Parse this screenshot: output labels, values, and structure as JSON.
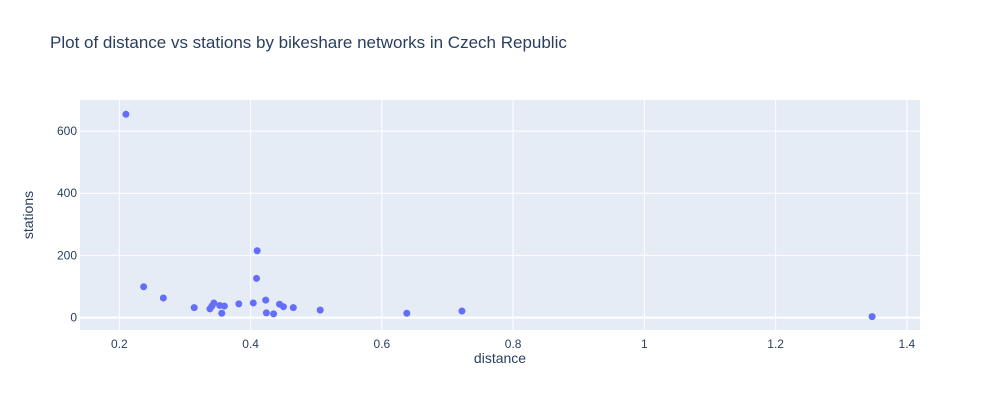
{
  "chart_data": {
    "type": "scatter",
    "title": "Plot of distance vs stations by bikeshare networks in Czech Republic",
    "xlabel": "distance",
    "ylabel": "stations",
    "xlim": [
      0.14,
      1.42
    ],
    "ylim": [
      -40,
      700
    ],
    "x_ticks": [
      0.2,
      0.4,
      0.6,
      0.8,
      1,
      1.2,
      1.4
    ],
    "x_tick_labels": [
      "0.2",
      "0.4",
      "0.6",
      "0.8",
      "1",
      "1.2",
      "1.4"
    ],
    "y_ticks": [
      0,
      200,
      400,
      600
    ],
    "y_tick_labels": [
      "0",
      "200",
      "400",
      "600"
    ],
    "grid": true,
    "colors": {
      "background": "#e5ecf6",
      "grid": "#ffffff",
      "marker": "#636efa",
      "text": "#2a3f5f"
    },
    "series": [
      {
        "points": [
          {
            "x": 0.21,
            "y": 654
          },
          {
            "x": 0.237,
            "y": 99
          },
          {
            "x": 0.267,
            "y": 63
          },
          {
            "x": 0.314,
            "y": 32
          },
          {
            "x": 0.338,
            "y": 28
          },
          {
            "x": 0.341,
            "y": 37
          },
          {
            "x": 0.344,
            "y": 47
          },
          {
            "x": 0.353,
            "y": 39
          },
          {
            "x": 0.356,
            "y": 14
          },
          {
            "x": 0.36,
            "y": 37
          },
          {
            "x": 0.382,
            "y": 44
          },
          {
            "x": 0.404,
            "y": 47
          },
          {
            "x": 0.409,
            "y": 126
          },
          {
            "x": 0.41,
            "y": 215
          },
          {
            "x": 0.423,
            "y": 56
          },
          {
            "x": 0.424,
            "y": 15
          },
          {
            "x": 0.435,
            "y": 12
          },
          {
            "x": 0.444,
            "y": 43
          },
          {
            "x": 0.45,
            "y": 35
          },
          {
            "x": 0.465,
            "y": 32
          },
          {
            "x": 0.506,
            "y": 24
          },
          {
            "x": 0.638,
            "y": 14
          },
          {
            "x": 0.722,
            "y": 21
          },
          {
            "x": 1.347,
            "y": 3
          }
        ]
      }
    ]
  }
}
